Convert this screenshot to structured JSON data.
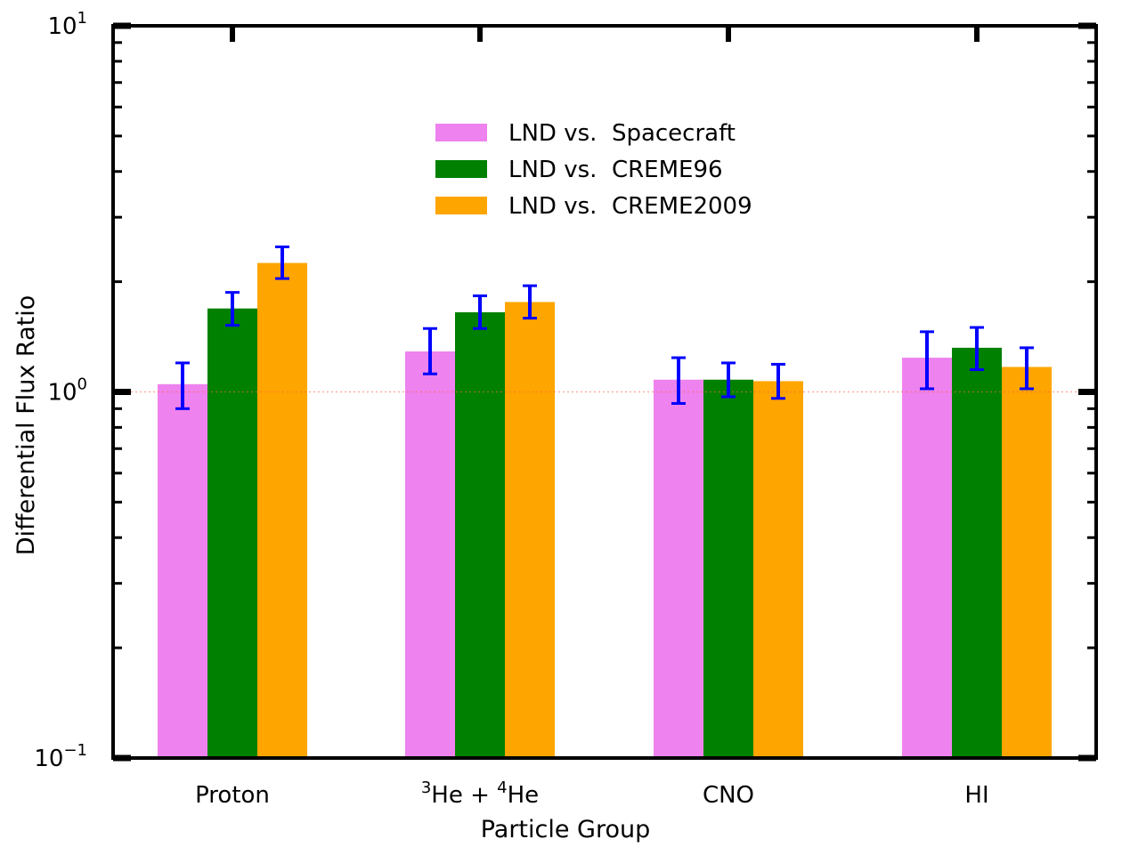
{
  "chart_data": {
    "type": "bar",
    "title": "",
    "xlabel": "Particle Group",
    "ylabel": "Differential Flux Ratio",
    "yscale": "log",
    "ylim": [
      0.1,
      10
    ],
    "y_ticks": [
      {
        "value": 0.1,
        "base": "10",
        "exp": "−1"
      },
      {
        "value": 1,
        "base": "10",
        "exp": "0"
      },
      {
        "value": 10,
        "base": "10",
        "exp": "1"
      }
    ],
    "categories": [
      {
        "label": "Proton",
        "sup1": "",
        "main1": "Proton",
        "sup2": "",
        "main2": ""
      },
      {
        "label": "3He + 4He",
        "sup1": "3",
        "main1": "He + ",
        "sup2": "4",
        "main2": "He"
      },
      {
        "label": "CNO",
        "sup1": "",
        "main1": "CNO",
        "sup2": "",
        "main2": ""
      },
      {
        "label": "HI",
        "sup1": "",
        "main1": "HI",
        "sup2": "",
        "main2": ""
      }
    ],
    "series": [
      {
        "name": "LND vs. Spacecraft",
        "color": "#ee82ee",
        "values": [
          1.05,
          1.29,
          1.08,
          1.24
        ],
        "err_low": [
          0.9,
          1.12,
          0.93,
          1.02
        ],
        "err_high": [
          1.2,
          1.49,
          1.24,
          1.46
        ]
      },
      {
        "name": "LND vs. CREME96",
        "color": "#008000",
        "values": [
          1.69,
          1.65,
          1.08,
          1.32
        ],
        "err_low": [
          1.52,
          1.49,
          0.97,
          1.15
        ],
        "err_high": [
          1.87,
          1.83,
          1.2,
          1.5
        ]
      },
      {
        "name": "LND vs. CREME2009",
        "color": "#ffa500",
        "values": [
          2.25,
          1.76,
          1.07,
          1.17
        ],
        "err_low": [
          2.04,
          1.59,
          0.96,
          1.02
        ],
        "err_high": [
          2.49,
          1.95,
          1.19,
          1.32
        ]
      }
    ],
    "error_bar_color": "#0000ff",
    "reference_line": {
      "value": 1,
      "color": "#ff6347",
      "style": "dotted"
    },
    "legend": {
      "position": "upper-center"
    },
    "grid": false
  }
}
